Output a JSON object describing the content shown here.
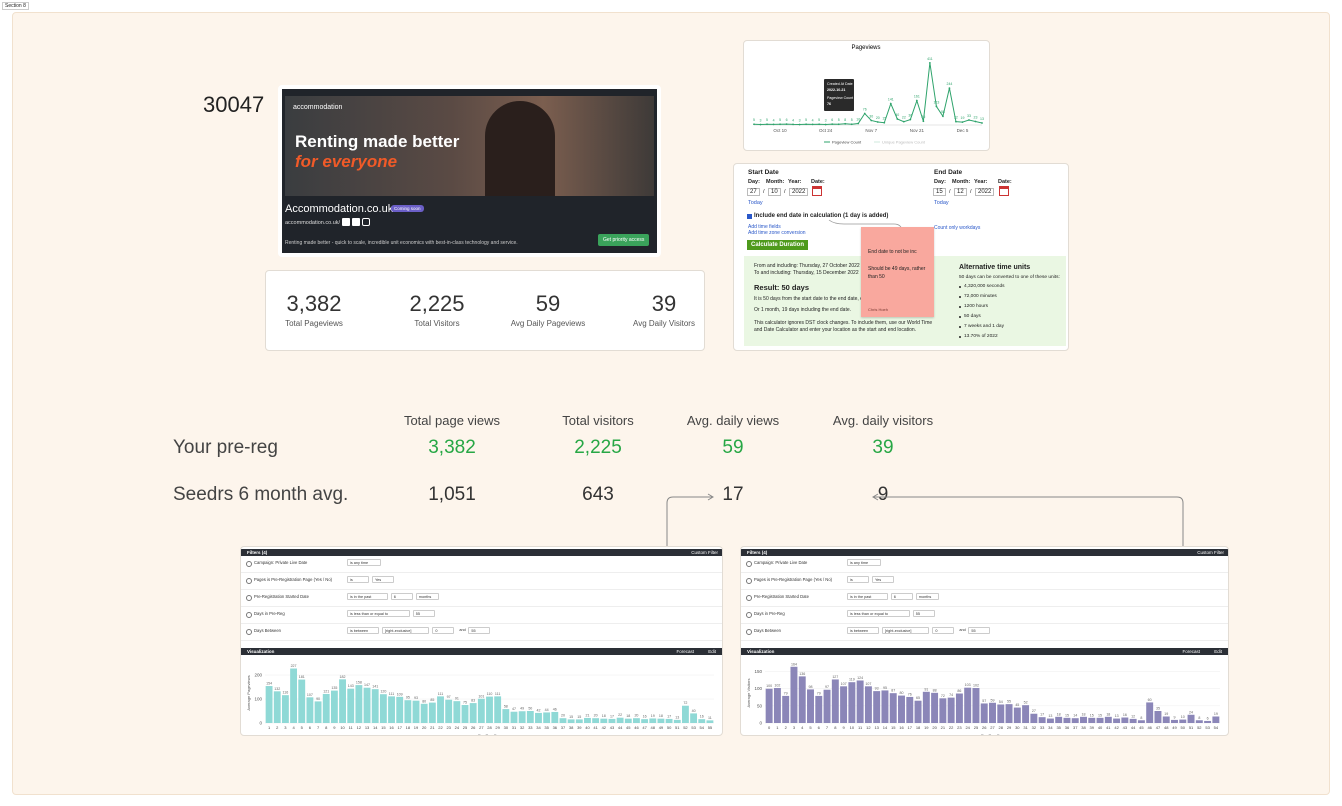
{
  "section_label": "Section 8",
  "reference_id": "30047",
  "banner": {
    "logo": "accommodation",
    "headline_1": "Renting made better",
    "headline_2": "for everyone",
    "title": "Accommodation.co.uk",
    "badge": "Coming soon",
    "url": "accommodation.co.uk/",
    "description": "Renting made better - quick to scale, incredible unit economics with best-in-class technology and service.",
    "cta": "Get priority access"
  },
  "stats": [
    {
      "value": "3,382",
      "label": "Total Pageviews"
    },
    {
      "value": "2,225",
      "label": "Total Visitors"
    },
    {
      "value": "59",
      "label": "Avg Daily Pageviews"
    },
    {
      "value": "39",
      "label": "Avg Daily Visitors"
    }
  ],
  "pageviews_chart": {
    "type": "line",
    "title": "Pageviews",
    "categories": [
      null,
      null,
      null,
      null,
      "Oct 10",
      null,
      null,
      null,
      null,
      null,
      null,
      "Oct 24",
      null,
      null,
      null,
      null,
      null,
      null,
      "Nov 7",
      null,
      null,
      null,
      null,
      null,
      null,
      "Nov 21",
      null,
      null,
      null,
      null,
      null,
      null,
      "Dec 5",
      null,
      null,
      null
    ],
    "series": [
      {
        "name": "Pageview Count",
        "color": "#2ea36b",
        "values": [
          5,
          3,
          5,
          4,
          5,
          6,
          4,
          3,
          5,
          4,
          5,
          3,
          6,
          5,
          8,
          5,
          10,
          76,
          30,
          20,
          15,
          141,
          40,
          22,
          36,
          161,
          25,
          411,
          123,
          58,
          244,
          22,
          19,
          33,
          23,
          13
        ]
      }
    ],
    "legend_entries": [
      "Pageview Count",
      "Unique Pageview Count"
    ],
    "ylim": [
      0,
      450
    ],
    "tooltip": {
      "label_1": "Created At Date",
      "value_1": "2022-10-21",
      "label_2": "Pageview Count",
      "value_2": "76"
    }
  },
  "date_calculator": {
    "start": {
      "heading": "Start Date",
      "day_label": "Day:",
      "month_label": "Month:",
      "year_label": "Year:",
      "date_label": "Date:",
      "day": "27",
      "month": "10",
      "year": "2022",
      "today": "Today"
    },
    "end": {
      "heading": "End Date",
      "day_label": "Day:",
      "month_label": "Month:",
      "year_label": "Year:",
      "date_label": "Date:",
      "day": "15",
      "month": "12",
      "year": "2022",
      "today": "Today"
    },
    "date_separator": "/",
    "include_end": "Include end date in calculation (1 day is added)",
    "add_time": "Add time fields",
    "add_timezone": "Add time zone conversion",
    "workdays": "Count only workdays",
    "button": "Calculate Duration",
    "from": "From and including: Thursday, 27 October 2022",
    "to": "To and including: Thursday, 15 December 2022",
    "result": "Result: 50 days",
    "result_line_1": "It is 50 days from the start date to the end date, end date included.",
    "result_line_2": "Or 1 month, 19 days including the end date.",
    "note": "This calculator ignores DST clock changes. To include them, use our World Time and Date Calculator and enter your location as the start and end location.",
    "alt_heading": "Alternative time units",
    "alt_intro": "50 days can be converted to one of these units:",
    "alt_units": [
      "4,320,000 seconds",
      "72,000 minutes",
      "1200 hours",
      "50 days",
      "7 weeks and 1 day",
      "13.70% of 2022"
    ]
  },
  "sticky_note": {
    "title": "End date to not be inc",
    "body": "Should be 49 days, rather than 50",
    "author": "Chris Hoeh"
  },
  "comparison": {
    "headers": [
      "Total page views",
      "Total visitors",
      "Avg. daily views",
      "Avg. daily visitors"
    ],
    "rows": [
      {
        "label": "Your pre-reg",
        "cells": [
          "3,382",
          "2,225",
          "59",
          "39"
        ]
      },
      {
        "label": "Seedrs 6 month avg.",
        "cells": [
          "1,051",
          "643",
          "17",
          "9"
        ]
      }
    ]
  },
  "dashboard_filters": {
    "title": "Filters (4)",
    "custom": "Custom Filter",
    "rows": [
      {
        "label": "Campaign: Private Live Date",
        "fields": [
          "is any time"
        ]
      },
      {
        "label": "Pages is Pre-Registration Page (Yes / No)",
        "fields": [
          "is",
          "Yes"
        ]
      },
      {
        "label": "Pre-Registration Started Date",
        "fields": [
          "is in the past",
          "6",
          "months"
        ]
      },
      {
        "label": "Days in Pre-Reg",
        "fields": [
          "is less than or equal to",
          "55"
        ]
      },
      {
        "label": "Days Between",
        "fields": [
          "is between",
          "[right-exclusive]",
          "0",
          "and",
          "55"
        ]
      }
    ],
    "visualization": "Visualization",
    "forecast": "Forecast",
    "edit": "Edit"
  },
  "dashboards": [
    {
      "chart": {
        "type": "bar",
        "color": "#8fd9d6",
        "y_label": "Average Pageviews",
        "x_label": "Pre-Reg Day",
        "categories": [
          "1",
          "2",
          "3",
          "4",
          "5",
          "6",
          "7",
          "8",
          "9",
          "10",
          "11",
          "12",
          "13",
          "14",
          "15",
          "16",
          "17",
          "18",
          "19",
          "20",
          "21",
          "22",
          "23",
          "24",
          "25",
          "26",
          "27",
          "28",
          "29",
          "30",
          "31",
          "32",
          "33",
          "34",
          "35",
          "36",
          "37",
          "38",
          "39",
          "40",
          "41",
          "42",
          "43",
          "44",
          "45",
          "46",
          "47",
          "48",
          "49",
          "50",
          "51",
          "52",
          "53",
          "54",
          "55"
        ],
        "values": [
          154,
          132,
          116,
          227,
          181,
          107,
          90,
          121,
          135,
          182,
          143,
          158,
          147,
          141,
          120,
          111,
          109,
          95,
          93,
          80,
          85,
          111,
          97,
          91,
          75,
          83,
          101,
          110,
          111,
          58,
          47,
          49,
          50,
          42,
          44,
          46,
          20,
          15,
          15,
          21,
          20,
          18,
          17,
          22,
          18,
          20,
          16,
          19,
          18,
          17,
          13,
          72,
          40,
          16,
          11
        ],
        "ylim": [
          0,
          250
        ],
        "yticks": [
          0,
          100,
          200
        ]
      }
    },
    {
      "chart": {
        "type": "bar",
        "color": "#8b86b8",
        "y_label": "Average Visitors",
        "x_label": "Pre-Reg Day",
        "categories": [
          "0",
          "1",
          "2",
          "3",
          "4",
          "5",
          "6",
          "7",
          "8",
          "9",
          "10",
          "11",
          "12",
          "13",
          "14",
          "15",
          "16",
          "17",
          "18",
          "19",
          "20",
          "21",
          "22",
          "23",
          "24",
          "25",
          "26",
          "27",
          "28",
          "29",
          "30",
          "31",
          "32",
          "33",
          "34",
          "35",
          "36",
          "37",
          "38",
          "39",
          "40",
          "41",
          "42",
          "43",
          "44",
          "45",
          "46",
          "47",
          "48",
          "49",
          "50",
          "51",
          "52",
          "53",
          "54"
        ],
        "values": [
          100,
          102,
          79,
          164,
          136,
          98,
          79,
          97,
          127,
          107,
          119,
          124,
          107,
          93,
          95,
          87,
          80,
          76,
          65,
          91,
          88,
          72,
          74,
          86,
          103,
          102,
          57,
          59,
          54,
          55,
          45,
          52,
          27,
          17,
          13,
          18,
          15,
          14,
          18,
          15,
          15,
          18,
          13,
          16,
          12,
          8,
          60,
          35,
          19,
          9,
          10,
          24,
          8,
          6,
          19
        ],
        "ylim": [
          0,
          175
        ],
        "yticks": [
          0,
          50,
          100,
          150
        ]
      }
    }
  ]
}
